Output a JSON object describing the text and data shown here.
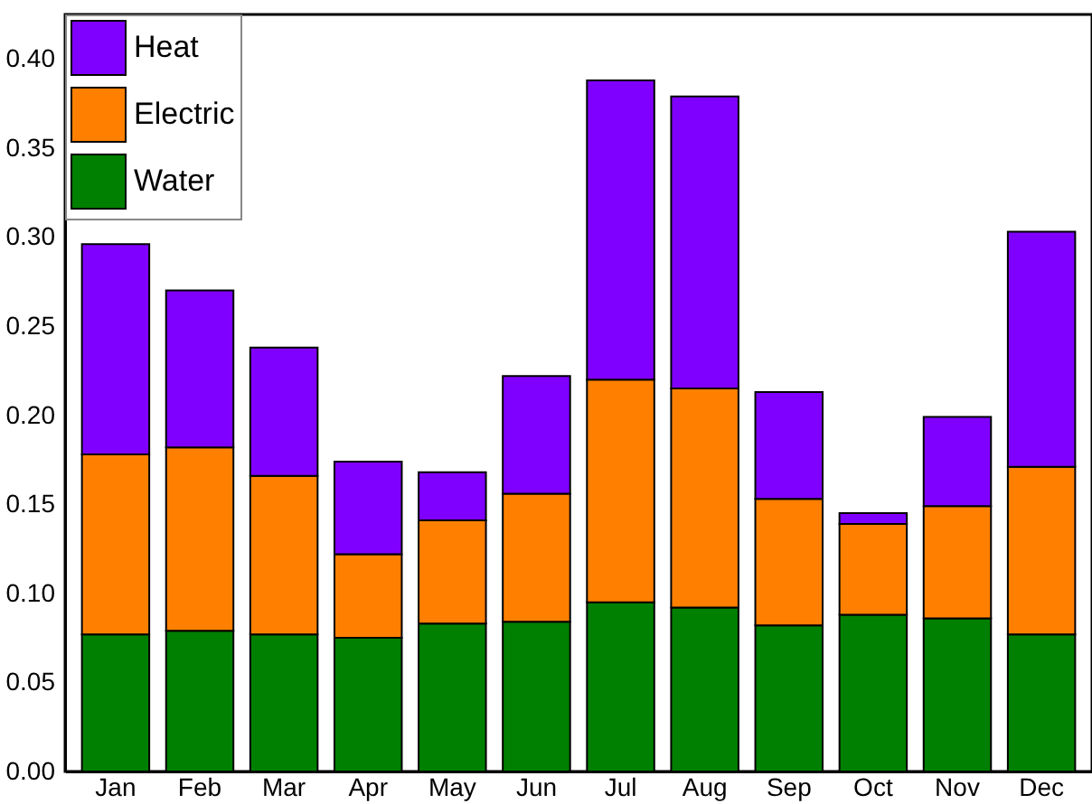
{
  "chart_data": {
    "type": "bar",
    "stacked": true,
    "categories": [
      "Jan",
      "Feb",
      "Mar",
      "Apr",
      "May",
      "Jun",
      "Jul",
      "Aug",
      "Sep",
      "Oct",
      "Nov",
      "Dec"
    ],
    "series": [
      {
        "name": "Water",
        "color": "#008000",
        "values": [
          0.077,
          0.079,
          0.077,
          0.075,
          0.083,
          0.084,
          0.095,
          0.092,
          0.082,
          0.088,
          0.086,
          0.077
        ]
      },
      {
        "name": "Electric",
        "color": "#ff8000",
        "values": [
          0.101,
          0.103,
          0.089,
          0.047,
          0.058,
          0.072,
          0.125,
          0.123,
          0.071,
          0.051,
          0.063,
          0.094
        ]
      },
      {
        "name": "Heat",
        "color": "#8000ff",
        "values": [
          0.118,
          0.088,
          0.072,
          0.052,
          0.027,
          0.066,
          0.168,
          0.164,
          0.06,
          0.006,
          0.05,
          0.132
        ]
      }
    ],
    "ylim": [
      0,
      0.425
    ],
    "yticks": [
      {
        "value": 0,
        "label": "0.00"
      },
      {
        "value": 0.05,
        "label": "0.05"
      },
      {
        "value": 0.1,
        "label": "0.10"
      },
      {
        "value": 0.15,
        "label": "0.15"
      },
      {
        "value": 0.2,
        "label": "0.20"
      },
      {
        "value": 0.25,
        "label": "0.25"
      },
      {
        "value": 0.3,
        "label": "0.30"
      },
      {
        "value": 0.35,
        "label": "0.35"
      },
      {
        "value": 0.4,
        "label": "0.40"
      }
    ],
    "grid": false,
    "legend": "top left"
  }
}
